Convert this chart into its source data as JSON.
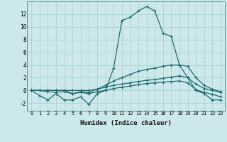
{
  "title": "",
  "xlabel": "Humidex (Indice chaleur)",
  "ylabel": "",
  "background_color": "#cce8ea",
  "grid_color": "#aad4d6",
  "line_color": "#1e6b6b",
  "xlim": [
    -0.5,
    23.5
  ],
  "ylim": [
    -3.2,
    14.0
  ],
  "yticks": [
    -2,
    0,
    2,
    4,
    6,
    8,
    10,
    12
  ],
  "xticks": [
    0,
    1,
    2,
    3,
    4,
    5,
    6,
    7,
    8,
    9,
    10,
    11,
    12,
    13,
    14,
    15,
    16,
    17,
    18,
    19,
    20,
    21,
    22,
    23
  ],
  "series": [
    [
      0.0,
      -0.8,
      -1.5,
      -0.5,
      -1.5,
      -1.5,
      -1.0,
      -2.2,
      -0.5,
      0.0,
      3.5,
      11.0,
      11.5,
      12.5,
      13.2,
      12.5,
      9.0,
      8.5,
      4.0,
      2.0,
      0.0,
      -0.5,
      -1.5,
      -1.5
    ],
    [
      0.0,
      0.0,
      0.0,
      0.0,
      0.0,
      -0.5,
      -0.2,
      -0.3,
      0.2,
      0.8,
      1.5,
      2.0,
      2.5,
      3.0,
      3.3,
      3.5,
      3.8,
      4.0,
      4.0,
      3.8,
      2.0,
      0.8,
      0.2,
      -0.2
    ],
    [
      0.0,
      0.0,
      0.0,
      0.0,
      0.0,
      0.0,
      0.0,
      0.0,
      0.2,
      0.5,
      0.8,
      1.0,
      1.2,
      1.4,
      1.6,
      1.7,
      1.9,
      2.1,
      2.3,
      2.0,
      1.0,
      0.3,
      0.0,
      -0.3
    ],
    [
      0.0,
      0.0,
      -0.2,
      -0.3,
      -0.2,
      -0.5,
      -0.3,
      -0.5,
      -0.2,
      0.0,
      0.3,
      0.5,
      0.7,
      0.9,
      1.1,
      1.2,
      1.3,
      1.4,
      1.5,
      1.2,
      0.1,
      -0.3,
      -0.6,
      -1.0
    ]
  ]
}
